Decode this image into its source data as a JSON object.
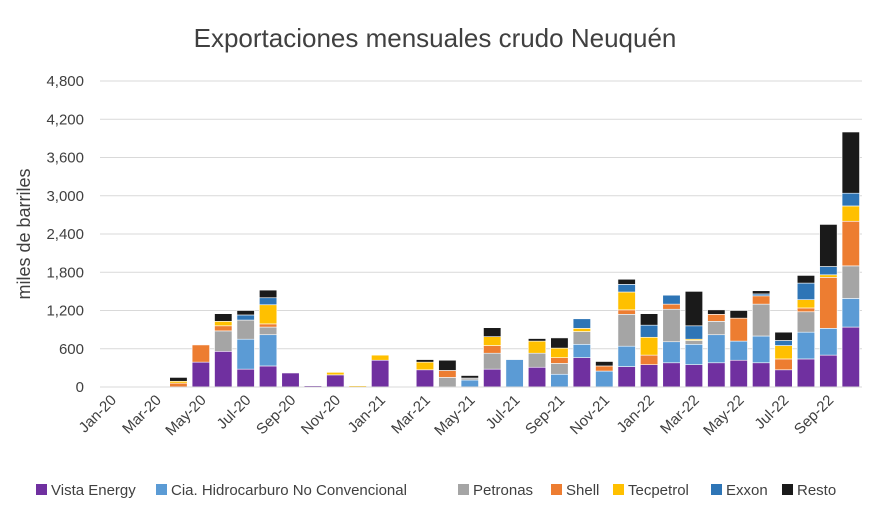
{
  "chart_data": {
    "type": "bar",
    "stacked": true,
    "title": "Exportaciones mensuales crudo Neuquén",
    "xlabel": "",
    "ylabel": "miles de barriles",
    "ylim": [
      0,
      4800
    ],
    "yticks": [
      0,
      600,
      1200,
      1800,
      2400,
      3000,
      3600,
      4200,
      4800
    ],
    "ytick_labels": [
      "0",
      "600",
      "1,200",
      "1,800",
      "2,400",
      "3,000",
      "3,600",
      "4,200",
      "4,800"
    ],
    "grid": true,
    "legend_position": "bottom",
    "categories": [
      "Jan-20",
      "Feb-20",
      "Mar-20",
      "Apr-20",
      "May-20",
      "Jun-20",
      "Jul-20",
      "Aug-20",
      "Sep-20",
      "Oct-20",
      "Nov-20",
      "Dec-20",
      "Jan-21",
      "Feb-21",
      "Mar-21",
      "Apr-21",
      "May-21",
      "Jun-21",
      "Jul-21",
      "Aug-21",
      "Sep-21",
      "Oct-21",
      "Nov-21",
      "Dec-21",
      "Jan-22",
      "Feb-22",
      "Mar-22",
      "Apr-22",
      "May-22",
      "Jun-22",
      "Jul-22",
      "Aug-22",
      "Sep-22",
      "Oct-22"
    ],
    "tick_labels": [
      "Jan-20",
      "",
      "Mar-20",
      "",
      "May-20",
      "",
      "Jul-20",
      "",
      "Sep-20",
      "",
      "Nov-20",
      "",
      "Jan-21",
      "",
      "Mar-21",
      "",
      "May-21",
      "",
      "Jul-21",
      "",
      "Sep-21",
      "",
      "Nov-21",
      "",
      "Jan-22",
      "",
      "Mar-22",
      "",
      "May-22",
      "",
      "Jul-22",
      "",
      "Sep-22",
      ""
    ],
    "series": [
      {
        "name": "Vista Energy",
        "color": "#7030a0",
        "values": [
          0,
          0,
          0,
          0,
          390,
          560,
          280,
          330,
          220,
          20,
          190,
          0,
          420,
          0,
          270,
          0,
          0,
          280,
          0,
          310,
          0,
          460,
          0,
          320,
          350,
          380,
          350,
          380,
          420,
          380,
          270,
          440,
          500,
          940
        ]
      },
      {
        "name": "Cia.  Hidrocarburo No Convencional",
        "color": "#5b9bd5",
        "values": [
          0,
          0,
          0,
          0,
          0,
          0,
          470,
          490,
          0,
          0,
          0,
          0,
          0,
          0,
          0,
          0,
          110,
          0,
          430,
          0,
          200,
          210,
          250,
          320,
          0,
          330,
          320,
          440,
          300,
          420,
          0,
          420,
          420,
          450
        ]
      },
      {
        "name": "Petronas",
        "color": "#a5a5a5",
        "values": [
          0,
          0,
          0,
          0,
          0,
          320,
          300,
          120,
          0,
          0,
          0,
          0,
          0,
          0,
          0,
          150,
          30,
          250,
          0,
          220,
          170,
          200,
          0,
          500,
          0,
          510,
          60,
          210,
          0,
          500,
          0,
          320,
          0,
          510
        ]
      },
      {
        "name": "Shell",
        "color": "#ed7d31",
        "values": [
          0,
          0,
          0,
          60,
          270,
          80,
          0,
          50,
          0,
          0,
          0,
          0,
          0,
          0,
          0,
          110,
          0,
          120,
          0,
          0,
          90,
          0,
          80,
          70,
          150,
          80,
          0,
          110,
          360,
          130,
          170,
          60,
          800,
          700
        ]
      },
      {
        "name": "Tecpetrol",
        "color": "#ffc000",
        "values": [
          0,
          0,
          0,
          30,
          0,
          70,
          0,
          300,
          0,
          0,
          40,
          20,
          80,
          0,
          120,
          0,
          0,
          140,
          0,
          190,
          150,
          50,
          0,
          280,
          280,
          0,
          20,
          0,
          0,
          0,
          210,
          130,
          40,
          240
        ]
      },
      {
        "name": "Exxon",
        "color": "#2e75b6",
        "values": [
          0,
          0,
          0,
          0,
          0,
          0,
          80,
          110,
          0,
          0,
          0,
          0,
          0,
          0,
          0,
          0,
          0,
          0,
          0,
          0,
          0,
          150,
          0,
          120,
          190,
          140,
          210,
          0,
          0,
          30,
          80,
          260,
          130,
          200
        ]
      },
      {
        "name": "Resto",
        "color": "#1a1a1a",
        "values": [
          0,
          0,
          0,
          60,
          0,
          120,
          70,
          120,
          0,
          0,
          0,
          0,
          0,
          0,
          40,
          160,
          40,
          140,
          0,
          40,
          160,
          0,
          70,
          80,
          180,
          0,
          540,
          70,
          120,
          50,
          130,
          120,
          660,
          960
        ]
      }
    ]
  }
}
